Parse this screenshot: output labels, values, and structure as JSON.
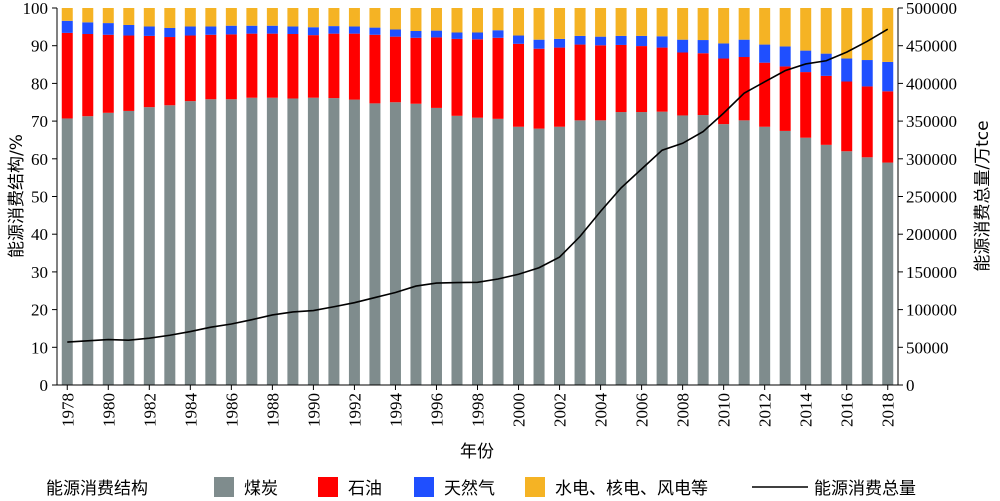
{
  "chart_data": {
    "type": "bar",
    "stacked": true,
    "years": [
      1978,
      1979,
      1980,
      1981,
      1982,
      1983,
      1984,
      1985,
      1986,
      1987,
      1988,
      1989,
      1990,
      1991,
      1992,
      1993,
      1994,
      1995,
      1996,
      1997,
      1998,
      1999,
      2000,
      2001,
      2002,
      2003,
      2004,
      2005,
      2006,
      2007,
      2008,
      2009,
      2010,
      2011,
      2012,
      2013,
      2014,
      2015,
      2016,
      2017,
      2018
    ],
    "x_tick_labels": [
      "1978",
      "1980",
      "1982",
      "1984",
      "1986",
      "1988",
      "1990",
      "1992",
      "1994",
      "1996",
      "1998",
      "2000",
      "2002",
      "2004",
      "2006",
      "2008",
      "2010",
      "2012",
      "2014",
      "2016",
      "2018"
    ],
    "xlabel": "年份",
    "ylabel_left": "能源消费结构/%",
    "ylabel_right": "能源消费总量/万tce",
    "ylim_left": [
      0,
      100
    ],
    "ylim_right": [
      0,
      500000
    ],
    "yticks_left": [
      0,
      10,
      20,
      30,
      40,
      50,
      60,
      70,
      80,
      90,
      100
    ],
    "yticks_right": [
      0,
      50000,
      100000,
      150000,
      200000,
      250000,
      300000,
      350000,
      400000,
      450000,
      500000
    ],
    "series": [
      {
        "name": "煤炭",
        "color": "#7f8c8d",
        "values": [
          70.7,
          71.3,
          72.2,
          72.7,
          73.7,
          74.2,
          75.3,
          75.8,
          75.8,
          76.2,
          76.2,
          76.0,
          76.2,
          76.1,
          75.7,
          74.7,
          75.0,
          74.6,
          73.5,
          71.4,
          70.9,
          70.6,
          68.5,
          68.0,
          68.5,
          70.2,
          70.2,
          72.4,
          72.4,
          72.5,
          71.5,
          71.6,
          69.2,
          70.2,
          68.5,
          67.4,
          65.6,
          63.7,
          62.0,
          60.4,
          59.0
        ]
      },
      {
        "name": "石油",
        "color": "#ff0000",
        "values": [
          22.7,
          21.8,
          20.7,
          20.0,
          18.9,
          18.1,
          17.4,
          17.1,
          17.2,
          17.0,
          17.0,
          17.1,
          16.6,
          17.1,
          17.5,
          18.2,
          17.4,
          17.5,
          18.7,
          20.4,
          20.8,
          21.5,
          22.0,
          21.2,
          21.0,
          20.1,
          19.9,
          17.8,
          17.5,
          17.0,
          16.7,
          16.4,
          17.4,
          16.8,
          17.0,
          17.1,
          17.4,
          18.3,
          18.5,
          18.8,
          18.9
        ]
      },
      {
        "name": "天然气",
        "color": "#1f4fff",
        "values": [
          3.2,
          3.1,
          3.1,
          2.8,
          2.5,
          2.4,
          2.4,
          2.2,
          2.3,
          2.1,
          2.1,
          2.0,
          2.1,
          2.0,
          1.9,
          1.9,
          1.9,
          1.8,
          1.8,
          1.7,
          1.8,
          2.0,
          2.2,
          2.4,
          2.3,
          2.3,
          2.3,
          2.4,
          2.7,
          3.0,
          3.4,
          3.5,
          4.0,
          4.6,
          4.8,
          5.3,
          5.7,
          5.9,
          6.1,
          7.0,
          7.8
        ]
      },
      {
        "name": "水电、核电、风电等",
        "color": "#f5b324",
        "values": [
          3.4,
          3.8,
          4.0,
          4.5,
          4.9,
          5.3,
          4.9,
          4.9,
          4.7,
          4.7,
          4.7,
          4.9,
          5.1,
          4.8,
          4.9,
          5.2,
          5.7,
          6.1,
          6.0,
          6.5,
          6.5,
          5.9,
          7.3,
          8.4,
          8.2,
          7.4,
          7.6,
          7.4,
          7.4,
          7.5,
          8.4,
          8.5,
          9.4,
          8.4,
          9.7,
          10.2,
          11.3,
          12.1,
          13.4,
          13.8,
          14.3
        ]
      }
    ],
    "line": {
      "name": "能源消费总量",
      "color": "#000000",
      "axis": "right",
      "values": [
        57000,
        58600,
        60300,
        59400,
        62100,
        66000,
        70900,
        76700,
        80900,
        86600,
        92900,
        96900,
        98700,
        103800,
        109200,
        116000,
        122700,
        131200,
        135200,
        135900,
        136200,
        140600,
        146900,
        155500,
        169600,
        197100,
        230300,
        261400,
        286500,
        311400,
        320600,
        336100,
        360600,
        387000,
        402100,
        416900,
        425800,
        430000,
        441500,
        455800,
        471900
      ]
    },
    "legend": {
      "title": "能源消费结构",
      "position": "bottom",
      "items": [
        "煤炭",
        "石油",
        "天然气",
        "水电、核电、风电等",
        "能源消费总量"
      ]
    },
    "grid": false
  }
}
